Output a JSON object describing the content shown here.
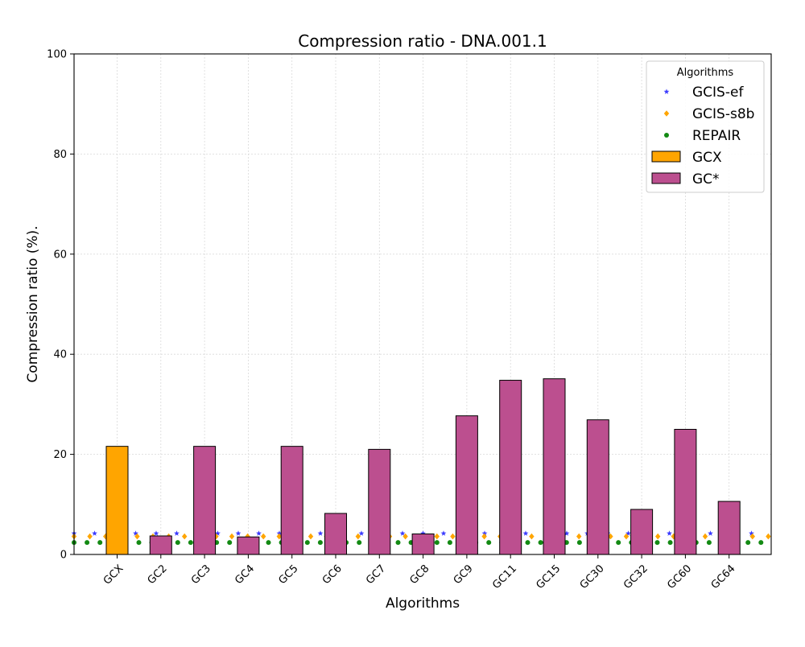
{
  "chart_data": {
    "type": "bar",
    "title": "Compression ratio -  DNA.001.1",
    "xlabel": "Algorithms",
    "ylabel": "Compression ratio (%).",
    "ylim": [
      0,
      100
    ],
    "yticks": [
      0,
      20,
      40,
      60,
      80,
      100
    ],
    "grid": true,
    "legend_placement": "top-right",
    "legend_title": "Algorithms",
    "categories": [
      "GCX",
      "GC2",
      "GC3",
      "GC4",
      "GC5",
      "GC6",
      "GC7",
      "GC8",
      "GC9",
      "GC11",
      "GC15",
      "GC30",
      "GC32",
      "GC60",
      "GC64"
    ],
    "series": [
      {
        "name": "GCX",
        "type": "bar",
        "color": "#ffa500",
        "values": [
          21.6,
          null,
          null,
          null,
          null,
          null,
          null,
          null,
          null,
          null,
          null,
          null,
          null,
          null,
          null
        ]
      },
      {
        "name": "GC*",
        "type": "bar",
        "color": "#bc4f8f",
        "values": [
          null,
          3.7,
          21.6,
          3.5,
          21.6,
          8.2,
          21.0,
          4.1,
          27.7,
          34.8,
          35.1,
          26.9,
          9.0,
          25.0,
          10.6
        ]
      },
      {
        "name": "GCIS-ef",
        "type": "line",
        "marker": "star",
        "color": "#3b3bff",
        "value": 4.2
      },
      {
        "name": "GCIS-s8b",
        "type": "line",
        "marker": "diamond",
        "color": "#ffa500",
        "value": 3.6
      },
      {
        "name": "REPAIR",
        "type": "line",
        "marker": "circle",
        "color": "#138a13",
        "value": 2.4
      }
    ]
  }
}
